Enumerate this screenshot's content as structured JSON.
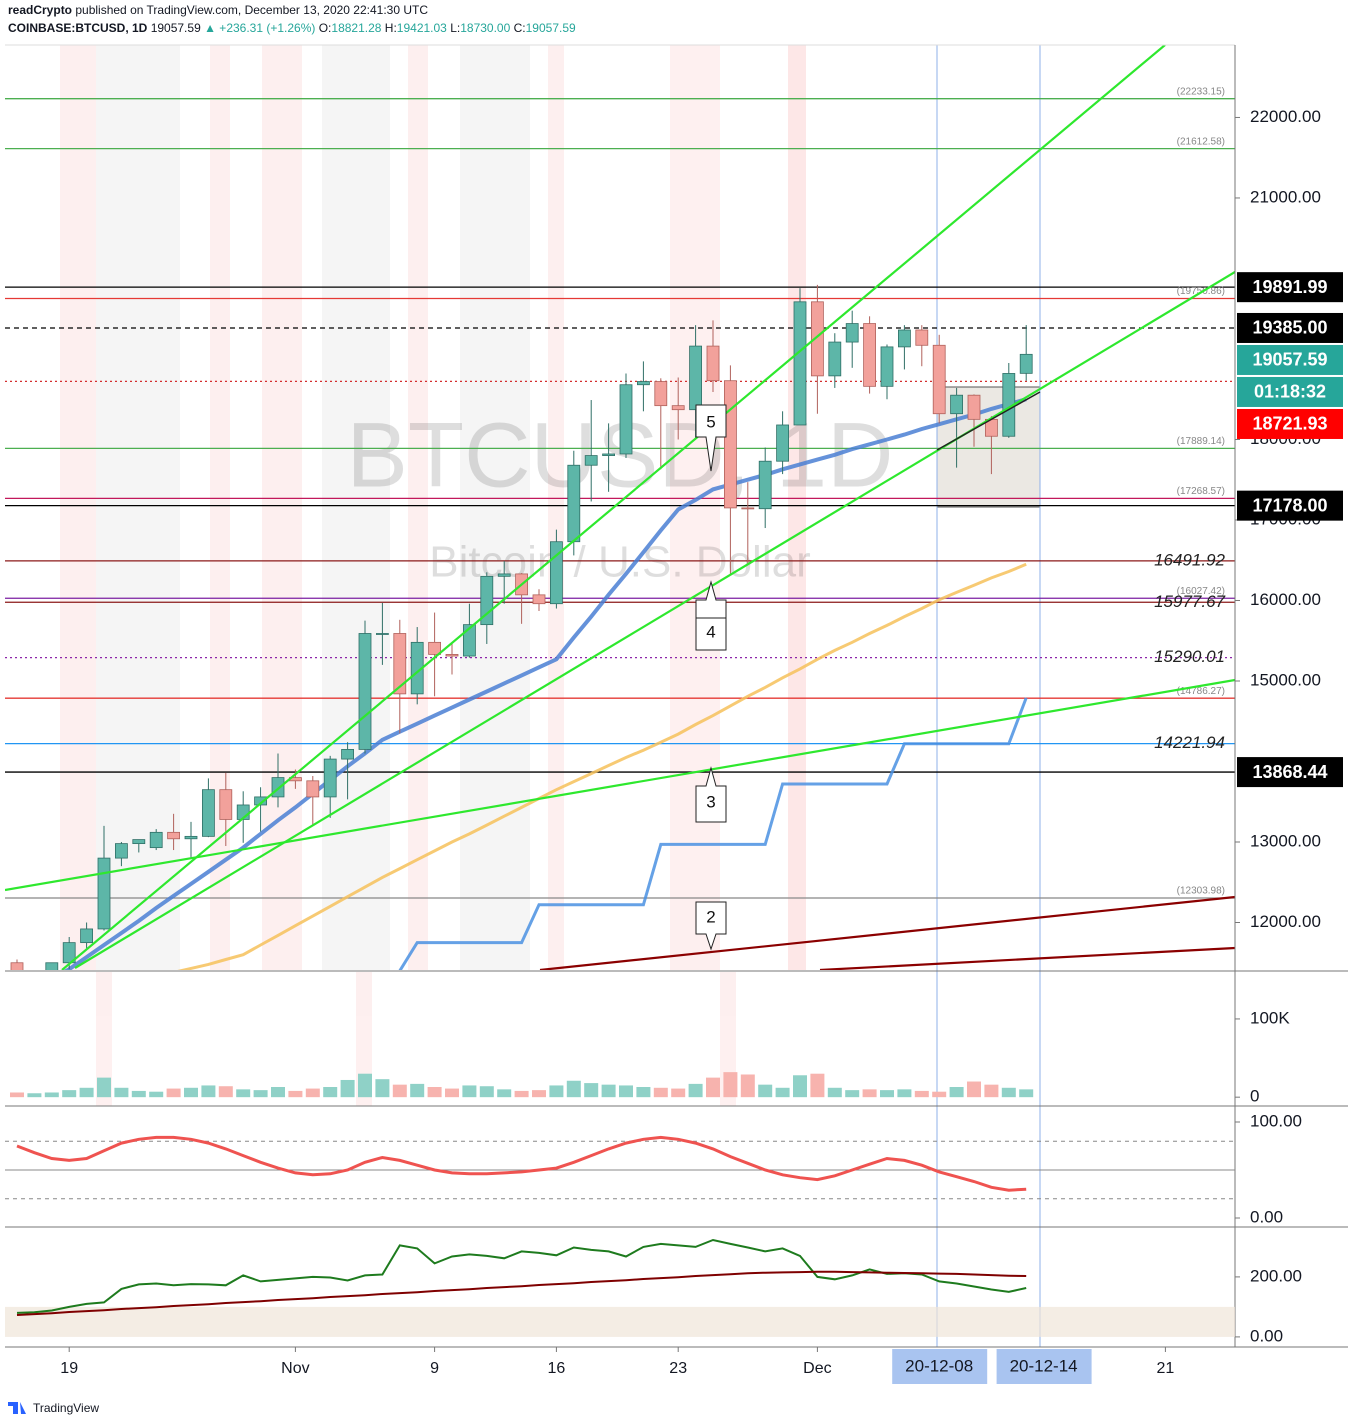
{
  "header": {
    "author": "readCrypto",
    "published": "published on TradingView.com, December 13, 2020 22:41:30 UTC",
    "symbol": "COINBASE:BTCUSD, 1D",
    "price": "19057.59",
    "change": "▲ +236.31 (+1.26%)",
    "ohlc": [
      {
        "label": "O:",
        "value": "18821.28"
      },
      {
        "label": "H:",
        "value": "19421.03"
      },
      {
        "label": "L:",
        "value": "18730.00"
      },
      {
        "label": "C:",
        "value": "19057.59"
      }
    ]
  },
  "footer": {
    "brand": "TradingView"
  },
  "chart_data": [
    {
      "type": "candlestick",
      "watermark": "BTCUSD, 1D",
      "subtitle": "Bitcoin / U.S. Dollar",
      "up_color": "#5db6a8",
      "down_color": "#f2a19b",
      "x": [
        "2020-10-16",
        "2020-10-17",
        "2020-10-18",
        "2020-10-19",
        "2020-10-20",
        "2020-10-21",
        "2020-10-22",
        "2020-10-23",
        "2020-10-24",
        "2020-10-25",
        "2020-10-26",
        "2020-10-27",
        "2020-10-28",
        "2020-10-29",
        "2020-10-30",
        "2020-10-31",
        "2020-11-01",
        "2020-11-02",
        "2020-11-03",
        "2020-11-04",
        "2020-11-05",
        "2020-11-06",
        "2020-11-07",
        "2020-11-08",
        "2020-11-09",
        "2020-11-10",
        "2020-11-11",
        "2020-11-12",
        "2020-11-13",
        "2020-11-14",
        "2020-11-15",
        "2020-11-16",
        "2020-11-17",
        "2020-11-18",
        "2020-11-19",
        "2020-11-20",
        "2020-11-21",
        "2020-11-22",
        "2020-11-23",
        "2020-11-24",
        "2020-11-25",
        "2020-11-26",
        "2020-11-27",
        "2020-11-28",
        "2020-11-29",
        "2020-11-30",
        "2020-12-01",
        "2020-12-02",
        "2020-12-03",
        "2020-12-04",
        "2020-12-05",
        "2020-12-06",
        "2020-12-07",
        "2020-12-08",
        "2020-12-09",
        "2020-12-10",
        "2020-12-11",
        "2020-12-12",
        "2020-12-13"
      ],
      "open": [
        11500,
        11320,
        11360,
        11500,
        11750,
        11920,
        12800,
        12980,
        12930,
        13120,
        13040,
        13070,
        13650,
        13280,
        13460,
        13560,
        13800,
        13760,
        13560,
        14030,
        14150,
        15590,
        15590,
        14840,
        15480,
        15330,
        15310,
        15700,
        16300,
        16330,
        16070,
        15960,
        16730,
        17680,
        17800,
        17820,
        18680,
        18720,
        18420,
        18370,
        19160,
        18730,
        17150,
        17140,
        17730,
        18180,
        19710,
        18790,
        19210,
        19440,
        18660,
        19150,
        19360,
        19170,
        18320,
        18550,
        18250,
        18040,
        18821.28
      ],
      "high": [
        11540,
        11400,
        11490,
        11820,
        12000,
        13200,
        13000,
        13020,
        13160,
        13350,
        13250,
        13790,
        13860,
        13630,
        13680,
        14100,
        13900,
        13820,
        14070,
        14240,
        15750,
        15970,
        15760,
        15670,
        15850,
        15480,
        15960,
        16350,
        16490,
        16340,
        16140,
        16880,
        17860,
        18490,
        18200,
        18820,
        18970,
        18760,
        18770,
        19420,
        19480,
        18920,
        17470,
        17900,
        18350,
        19880,
        19920,
        19320,
        19600,
        19530,
        19180,
        19420,
        19420,
        19300,
        18640,
        18560,
        18290,
        18950,
        19421.03
      ],
      "low": [
        11220,
        11250,
        11330,
        11420,
        11680,
        11900,
        12700,
        12870,
        12900,
        12900,
        12800,
        13060,
        12950,
        12990,
        13130,
        13430,
        13660,
        13200,
        13300,
        13530,
        14100,
        15200,
        14350,
        14710,
        14810,
        15080,
        15290,
        15460,
        15960,
        15710,
        15870,
        15900,
        16560,
        17230,
        17350,
        17770,
        18350,
        17630,
        18000,
        18020,
        18590,
        16330,
        16450,
        16900,
        17570,
        18180,
        18320,
        18640,
        18890,
        18570,
        18500,
        18870,
        18910,
        18200,
        17650,
        17910,
        17570,
        18020,
        18730
      ],
      "close": [
        11320,
        11360,
        11500,
        11750,
        11920,
        12800,
        12980,
        13030,
        13120,
        13040,
        13070,
        13650,
        13280,
        13460,
        13560,
        13800,
        13760,
        13560,
        14030,
        14150,
        15590,
        15590,
        14840,
        15480,
        15330,
        15310,
        15700,
        16300,
        16330,
        16070,
        15960,
        16730,
        17680,
        17800,
        17820,
        18680,
        18720,
        18420,
        18370,
        19160,
        18730,
        17150,
        17140,
        17730,
        18180,
        19710,
        18790,
        19210,
        19440,
        18660,
        19150,
        19360,
        19170,
        18320,
        18550,
        18250,
        18040,
        18820,
        19057.59
      ],
      "lines": [
        {
          "color": "#f6c15a",
          "width": 3,
          "values": [
            11000,
            11040,
            11080,
            11120,
            11160,
            11200,
            11240,
            11280,
            11330,
            11380,
            11430,
            11480,
            11540,
            11600,
            11720,
            11840,
            11960,
            12080,
            12200,
            12320,
            12440,
            12560,
            12670,
            12780,
            12890,
            13000,
            13100,
            13210,
            13320,
            13430,
            13540,
            13650,
            13750,
            13850,
            13950,
            14050,
            14140,
            14240,
            14340,
            14460,
            14570,
            14690,
            14810,
            14920,
            15040,
            15150,
            15270,
            15380,
            15480,
            15590,
            15690,
            15800,
            15900,
            16010,
            16100,
            16190,
            16280,
            16360,
            16450
          ]
        },
        {
          "color": "#4a7fd4",
          "width": 4,
          "values": [
            11000,
            11150,
            11300,
            11420,
            11570,
            11720,
            11870,
            12020,
            12180,
            12330,
            12480,
            12630,
            12780,
            12930,
            13100,
            13270,
            13430,
            13600,
            13770,
            13940,
            14100,
            14270,
            14370,
            14470,
            14570,
            14670,
            14770,
            14870,
            14970,
            15070,
            15170,
            15270,
            15540,
            15800,
            16070,
            16330,
            16600,
            16870,
            17130,
            17250,
            17380,
            17440,
            17500,
            17560,
            17630,
            17690,
            17750,
            17810,
            17880,
            17940,
            18000,
            18060,
            18130,
            18190,
            18250,
            18310,
            18380,
            18440,
            18500
          ]
        },
        {
          "color": "#4a90e2",
          "width": 3,
          "values": [
            null,
            null,
            null,
            null,
            null,
            null,
            null,
            null,
            null,
            null,
            null,
            null,
            null,
            null,
            null,
            null,
            null,
            null,
            null,
            null,
            null,
            null,
            11400,
            11750,
            11750,
            11750,
            11750,
            11750,
            11750,
            11750,
            12220,
            12220,
            12220,
            12220,
            12220,
            12220,
            12220,
            12970,
            12970,
            12970,
            12970,
            12970,
            12970,
            12970,
            13720,
            13720,
            13720,
            13720,
            13720,
            13720,
            13720,
            14220,
            14220,
            14220,
            14220,
            14220,
            14220,
            14220,
            14790
          ]
        }
      ],
      "levels": [
        {
          "value": 22233.15,
          "label": "(22233.15)",
          "color": "#4caf50"
        },
        {
          "value": 21612.58,
          "label": "(21612.58)",
          "color": "#4caf50"
        },
        {
          "value": 19891.99,
          "color": "#000000"
        },
        {
          "value": 19750.86,
          "label": "(19750.86)",
          "color": "#e53935"
        },
        {
          "value": 19385,
          "color": "#000000",
          "dash": "5 4"
        },
        {
          "value": 18721.93,
          "color": "#d32f2f",
          "dash": "2 3"
        },
        {
          "value": 17889.14,
          "label": "(17889.14)",
          "color": "#4caf50"
        },
        {
          "value": 17268.57,
          "label": "(17268.57)",
          "color": "#c2185b"
        },
        {
          "value": 17178,
          "color": "#000000"
        },
        {
          "value": 16491.92,
          "label": "16491.92",
          "color": "#8b1a1a",
          "italic": true
        },
        {
          "value": 16027.42,
          "label": "(16027.42)",
          "color": "#7b1fa2"
        },
        {
          "value": 15977.67,
          "label": "15977.67",
          "color": "#8b1a1a",
          "italic": true
        },
        {
          "value": 15290.01,
          "label": "15290.01",
          "color": "#8e24aa",
          "dash": "2 3",
          "italic": true
        },
        {
          "value": 14786.27,
          "label": "(14786.27)",
          "color": "#e53935"
        },
        {
          "value": 14221.94,
          "label": "14221.94",
          "color": "#2196f3",
          "italic": true
        },
        {
          "value": 13868.44,
          "color": "#000000"
        },
        {
          "value": 12303.98,
          "label": "(12303.98)",
          "color": "#888888"
        }
      ],
      "badges": [
        {
          "value": 19891.99,
          "label": "19891.99",
          "color": "#000000"
        },
        {
          "value": 19385,
          "label": "19385.00",
          "color": "#000000"
        },
        {
          "value": 19057.59,
          "label": "19057.59",
          "color": "#26a69a"
        },
        {
          "label": "01:18:32",
          "color": "#26a69a"
        },
        {
          "value": 18721.93,
          "label": "18721.93",
          "color": "#ff0000"
        },
        {
          "value": 17178,
          "label": "17178.00",
          "color": "#000000"
        },
        {
          "value": 13868.44,
          "label": "13868.44",
          "color": "#000000"
        }
      ],
      "annotations": [
        "5",
        "4",
        "3",
        "2"
      ],
      "ylim": [
        11410,
        22900
      ],
      "yticks": [
        {
          "value": 12000,
          "label": "12000.00"
        },
        {
          "value": 13000,
          "label": "13000.00"
        },
        {
          "value": 15000,
          "label": "15000.00"
        },
        {
          "value": 16000,
          "label": "16000.00"
        },
        {
          "value": 17000,
          "label": "17000.00"
        },
        {
          "value": 18000,
          "label": "18000.00"
        },
        {
          "value": 21000,
          "label": "21000.00"
        },
        {
          "value": 22000,
          "label": "22000.00"
        }
      ],
      "xticks": [
        {
          "value": "2020-10-19",
          "label": "19"
        },
        {
          "value": "2020-11-01",
          "label": "Nov"
        },
        {
          "value": "2020-11-09",
          "label": "9"
        },
        {
          "value": "2020-11-16",
          "label": "16"
        },
        {
          "value": "2020-11-23",
          "label": "23"
        },
        {
          "value": "2020-12-01",
          "label": "Dec"
        },
        {
          "value": "2020-12-21",
          "label": "21"
        }
      ],
      "x_badges": [
        {
          "value": "2020-12-08",
          "label": "20-12-08"
        },
        {
          "value": "2020-12-14",
          "label": "20-12-14"
        }
      ]
    },
    {
      "type": "bar",
      "up_color": "#8fd1c7",
      "down_color": "#f7b3ae",
      "values": [
        6000,
        5000,
        6000,
        9000,
        12000,
        25000,
        12000,
        8000,
        7000,
        11000,
        12000,
        15000,
        14000,
        10000,
        9000,
        13000,
        8000,
        11000,
        13000,
        22000,
        30000,
        23000,
        16000,
        17000,
        13000,
        11000,
        15000,
        14000,
        10000,
        8000,
        9000,
        15000,
        21000,
        18000,
        16000,
        15000,
        13000,
        12000,
        11000,
        17000,
        25000,
        32000,
        29000,
        16000,
        12000,
        28000,
        30000,
        12000,
        9000,
        10000,
        9000,
        10000,
        8000,
        7000,
        13000,
        20000,
        16000,
        12000,
        10000
      ],
      "ylim": [
        -10000,
        160000
      ],
      "yticks": [
        {
          "value": 100000,
          "label": "100K"
        },
        0
      ]
    },
    {
      "type": "line",
      "color": "#ef5350",
      "bands": [
        20,
        50,
        80
      ],
      "values": [
        75,
        68,
        62,
        60,
        62,
        70,
        78,
        82,
        84,
        84,
        82,
        78,
        72,
        65,
        58,
        52,
        47,
        45,
        46,
        50,
        58,
        63,
        60,
        55,
        50,
        47,
        46,
        46,
        47,
        48,
        50,
        52,
        58,
        65,
        72,
        78,
        82,
        84,
        82,
        78,
        72,
        64,
        57,
        50,
        45,
        42,
        40,
        44,
        50,
        56,
        62,
        60,
        55,
        48,
        43,
        38,
        32,
        29,
        30
      ],
      "ylim": [
        -7.3,
        114.6
      ],
      "yticks": [
        {
          "value": 100,
          "label": "100.00"
        },
        {
          "value": 0,
          "label": "0.00"
        }
      ]
    },
    {
      "type": "line",
      "band": [
        0,
        100
      ],
      "series": [
        {
          "color": "#1e7b1e",
          "values": [
            80,
            82,
            88,
            100,
            110,
            115,
            160,
            175,
            178,
            172,
            176,
            175,
            172,
            205,
            185,
            190,
            195,
            200,
            198,
            188,
            205,
            208,
            305,
            295,
            245,
            268,
            275,
            270,
            262,
            285,
            280,
            272,
            298,
            290,
            285,
            268,
            300,
            310,
            305,
            300,
            323,
            310,
            298,
            285,
            295,
            270,
            200,
            192,
            205,
            225,
            210,
            212,
            208,
            185,
            178,
            168,
            158,
            150,
            163
          ]
        },
        {
          "color": "#7f0000",
          "values": [
            73,
            76,
            79,
            83,
            86,
            89,
            93,
            96,
            99,
            103,
            106,
            109,
            113,
            116,
            119,
            123,
            126,
            129,
            133,
            136,
            139,
            143,
            146,
            149,
            153,
            156,
            159,
            163,
            166,
            169,
            173,
            176,
            179,
            183,
            186,
            189,
            193,
            196,
            199,
            203,
            206,
            209,
            212,
            214,
            215,
            216,
            217,
            217,
            216,
            215,
            214,
            213,
            212,
            211,
            210,
            208,
            206,
            204,
            203
          ]
        }
      ],
      "ylim": [
        -37,
        363
      ],
      "yticks": [
        {
          "value": 200,
          "label": "200.00"
        },
        {
          "value": 0,
          "label": "0.00"
        }
      ]
    }
  ]
}
